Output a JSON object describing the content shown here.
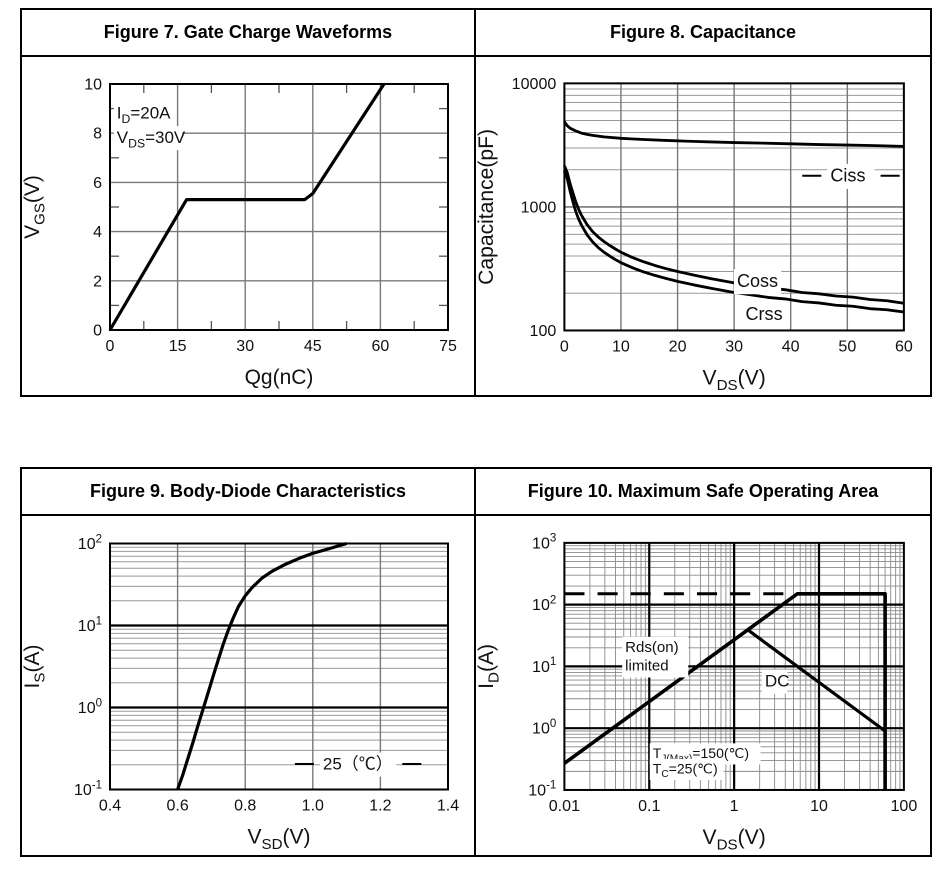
{
  "page": {
    "background": "#ffffff",
    "table_border": "#000000",
    "curve_color": "#000000"
  },
  "chart_data": [
    {
      "type": "line",
      "name": "gate-charge",
      "title": "Figure 7. Gate Charge Waveforms",
      "xlabel": "Qg(nC)",
      "ylabel": "V~GS~(V)",
      "xscale": "linear",
      "yscale": "linear",
      "xlim": [
        0,
        75
      ],
      "ylim": [
        0,
        10
      ],
      "xticks": [
        0,
        15,
        30,
        45,
        60,
        75
      ],
      "xtick_labels": [
        "0",
        "15",
        "30",
        "45",
        "60",
        "75"
      ],
      "yticks": [
        0,
        2,
        4,
        6,
        8,
        10
      ],
      "ytick_labels": [
        "0",
        "2",
        "4",
        "6",
        "8",
        "10"
      ],
      "xminor_ticks": [
        7.5,
        22.5,
        37.5,
        52.5,
        67.5
      ],
      "yminor_ticks": [
        1,
        3,
        5,
        7,
        9
      ],
      "grid": {
        "x_color": "#787878",
        "x_width": 1.4,
        "y_color": "#787878",
        "y_width": 1.4,
        "minor_color": "#9a9a9a",
        "minor_width": 1
      },
      "series": [
        {
          "name": "vgs-curve",
          "width": 3.2,
          "points": [
            [
              0,
              0
            ],
            [
              17,
              5.3
            ],
            [
              43.2,
              5.3
            ],
            [
              45,
              5.55
            ],
            [
              60.8,
              10
            ]
          ]
        }
      ],
      "annotations": [
        {
          "x": 1.5,
          "y": 8.6,
          "text": "I~D~=20A",
          "size": 17,
          "bg": true
        },
        {
          "x": 1.5,
          "y": 7.6,
          "text": "V~DS~=30V",
          "size": 17,
          "bg": true
        }
      ]
    },
    {
      "type": "line",
      "name": "capacitance",
      "title": "Figure 8. Capacitance",
      "xlabel": "V~DS~(V)",
      "ylabel": "Capacitance(pF)",
      "xscale": "linear",
      "yscale": "log",
      "xlim": [
        0,
        60
      ],
      "ylim": [
        100,
        10000
      ],
      "xticks": [
        0,
        10,
        20,
        30,
        40,
        50,
        60
      ],
      "xtick_labels": [
        "0",
        "10",
        "20",
        "30",
        "40",
        "50",
        "60"
      ],
      "yticks": [
        100,
        1000,
        10000
      ],
      "ytick_labels": [
        "100",
        "1000",
        "10000"
      ],
      "grid": {
        "x_color": "#787878",
        "x_width": 1.4,
        "y_color": "#606060",
        "y_width": 1.4,
        "minor_color": "#9a9a9a",
        "minor_width": 1
      },
      "series": [
        {
          "name": "ciss-curve",
          "width": 2.8,
          "points": [
            [
              0,
              4900
            ],
            [
              0.5,
              4550
            ],
            [
              1,
              4350
            ],
            [
              2,
              4120
            ],
            [
              3,
              3960
            ],
            [
              4,
              3860
            ],
            [
              5,
              3790
            ],
            [
              7,
              3690
            ],
            [
              10,
              3590
            ],
            [
              14,
              3510
            ],
            [
              18,
              3450
            ],
            [
              22,
              3400
            ],
            [
              26,
              3360
            ],
            [
              30,
              3320
            ],
            [
              35,
              3280
            ],
            [
              40,
              3240
            ],
            [
              45,
              3200
            ],
            [
              50,
              3170
            ],
            [
              55,
              3130
            ],
            [
              60,
              3090
            ]
          ]
        },
        {
          "name": "coss-curve",
          "width": 2.8,
          "points": [
            [
              0,
              2150
            ],
            [
              0.5,
              1900
            ],
            [
              1,
              1550
            ],
            [
              1.5,
              1300
            ],
            [
              2,
              1100
            ],
            [
              2.5,
              960
            ],
            [
              3,
              860
            ],
            [
              4,
              720
            ],
            [
              5,
              630
            ],
            [
              6,
              570
            ],
            [
              7,
              525
            ],
            [
              8,
              487
            ],
            [
              9,
              456
            ],
            [
              10,
              430
            ],
            [
              12,
              390
            ],
            [
              14,
              360
            ],
            [
              16,
              336
            ],
            [
              18,
              316
            ],
            [
              20,
              300
            ],
            [
              23,
              280
            ],
            [
              26,
              262
            ],
            [
              30,
              243
            ],
            [
              33,
              232
            ],
            [
              36,
              220
            ],
            [
              39,
              214
            ],
            [
              42,
              203
            ],
            [
              45,
              198
            ],
            [
              48,
              190
            ],
            [
              51,
              186
            ],
            [
              54,
              178
            ],
            [
              57,
              174
            ],
            [
              60,
              166
            ]
          ]
        },
        {
          "name": "crss-curve",
          "width": 2.8,
          "points": [
            [
              0,
              1950
            ],
            [
              0.5,
              1700
            ],
            [
              1,
              1350
            ],
            [
              1.5,
              1100
            ],
            [
              2,
              920
            ],
            [
              2.5,
              800
            ],
            [
              3,
              715
            ],
            [
              4,
              595
            ],
            [
              5,
              520
            ],
            [
              6,
              468
            ],
            [
              7,
              430
            ],
            [
              8,
              400
            ],
            [
              9,
              375
            ],
            [
              10,
              354
            ],
            [
              12,
              322
            ],
            [
              14,
              298
            ],
            [
              16,
              279
            ],
            [
              18,
              263
            ],
            [
              20,
              250
            ],
            [
              23,
              233
            ],
            [
              26,
              219
            ],
            [
              30,
              203
            ],
            [
              33,
              194
            ],
            [
              36,
              185
            ],
            [
              39,
              180
            ],
            [
              42,
              171
            ],
            [
              45,
              167
            ],
            [
              48,
              160
            ],
            [
              51,
              157
            ],
            [
              54,
              150
            ],
            [
              57,
              147
            ],
            [
              60,
              141
            ]
          ]
        }
      ],
      "annotations": [
        {
          "x": 47,
          "y": 1600,
          "text": "Ciss",
          "size": 18,
          "bg": true,
          "dash_left": true,
          "dash_right": true
        },
        {
          "x": 30.5,
          "y": 225,
          "text": "Coss",
          "size": 18,
          "bg": true
        },
        {
          "x": 32,
          "y": 122,
          "text": "Crss",
          "size": 18,
          "bg": true
        }
      ]
    },
    {
      "type": "line",
      "name": "body-diode",
      "title": "Figure 9. Body-Diode Characteristics",
      "xlabel": "V~SD~(V)",
      "ylabel": "I~S~(A)",
      "xscale": "linear",
      "yscale": "log",
      "xlim": [
        0.4,
        1.4
      ],
      "ylim": [
        0.1,
        100
      ],
      "xticks": [
        0.4,
        0.6,
        0.8,
        1.0,
        1.2,
        1.4
      ],
      "xtick_labels": [
        "0.4",
        "0.6",
        "0.8",
        "1.0",
        "1.2",
        "1.4"
      ],
      "yticks": [
        0.1,
        1,
        10,
        100
      ],
      "ytick_labels": [
        "10^-1^",
        "10^0^",
        "10^1^",
        "10^2^"
      ],
      "grid": {
        "x_color": "#787878",
        "x_width": 1.4,
        "y_color": "#000000",
        "y_width": 2.2,
        "minor_color": "#9a9a9a",
        "minor_width": 1
      },
      "series": [
        {
          "name": "is-curve",
          "width": 3.2,
          "points": [
            [
              0.6,
              0.1
            ],
            [
              0.615,
              0.15
            ],
            [
              0.63,
              0.235
            ],
            [
              0.645,
              0.37
            ],
            [
              0.66,
              0.6
            ],
            [
              0.675,
              0.95
            ],
            [
              0.69,
              1.5
            ],
            [
              0.705,
              2.4
            ],
            [
              0.72,
              3.8
            ],
            [
              0.735,
              5.9
            ],
            [
              0.75,
              8.8
            ],
            [
              0.765,
              12.5
            ],
            [
              0.78,
              17
            ],
            [
              0.8,
              23
            ],
            [
              0.82,
              29
            ],
            [
              0.85,
              38
            ],
            [
              0.88,
              46
            ],
            [
              0.92,
              56
            ],
            [
              0.96,
              66
            ],
            [
              1.0,
              76
            ],
            [
              1.05,
              87
            ],
            [
              1.1,
              100
            ]
          ]
        }
      ],
      "annotations": [
        {
          "x": 1.03,
          "y": 0.175,
          "text": "25（℃）",
          "size": 17,
          "bg": true,
          "dash_left": true,
          "dash_right": true
        }
      ]
    },
    {
      "type": "line",
      "name": "soa",
      "title": "Figure 10. Maximum Safe Operating Area",
      "xlabel": "V~DS~(V)",
      "ylabel": "I~D~(A)",
      "xscale": "log",
      "yscale": "log",
      "xlim": [
        0.01,
        100
      ],
      "ylim": [
        0.1,
        1000
      ],
      "xticks": [
        0.01,
        0.1,
        1,
        10,
        100
      ],
      "xtick_labels": [
        "0.01",
        "0.1",
        "1",
        "10",
        "100"
      ],
      "yticks": [
        0.1,
        1,
        10,
        100,
        1000
      ],
      "ytick_labels": [
        "10^-1^",
        "10^0^",
        "10^1^",
        "10^2^",
        "10^3^"
      ],
      "grid": {
        "x_color": "#000000",
        "x_width": 2.2,
        "y_color": "#000000",
        "y_width": 2.2,
        "minor_color": "#8a8a8a",
        "minor_width": 0.9
      },
      "series": [
        {
          "name": "pulse-limit-dashed",
          "width": 3,
          "dash": [
            20,
            13
          ],
          "points": [
            [
              0.01,
              150
            ],
            [
              4.3,
              150
            ]
          ]
        },
        {
          "name": "soa-boundary",
          "width": 3.6,
          "points": [
            [
              0.01,
              0.27
            ],
            [
              5.55,
              150
            ],
            [
              60,
              150
            ],
            [
              60,
              0.102
            ]
          ]
        },
        {
          "name": "dc-limit",
          "width": 3.2,
          "points": [
            [
              1.45,
              39
            ],
            [
              60,
              0.9
            ]
          ]
        }
      ],
      "annotations": [
        {
          "x": 0.052,
          "y": 17,
          "text": "Rds(on)",
          "size": 15,
          "bg": true
        },
        {
          "x": 0.052,
          "y": 8.5,
          "text": "limited",
          "size": 15,
          "bg": true
        },
        {
          "x": 2.3,
          "y": 4.7,
          "text": "DC",
          "size": 17,
          "bg": true
        },
        {
          "x": 0.11,
          "y": 0.33,
          "text": "T~J(Max)~=150(℃)",
          "size": 14,
          "bg": true
        },
        {
          "x": 0.11,
          "y": 0.185,
          "text": "T~C~=25(℃)",
          "size": 14,
          "bg": true
        }
      ]
    }
  ]
}
